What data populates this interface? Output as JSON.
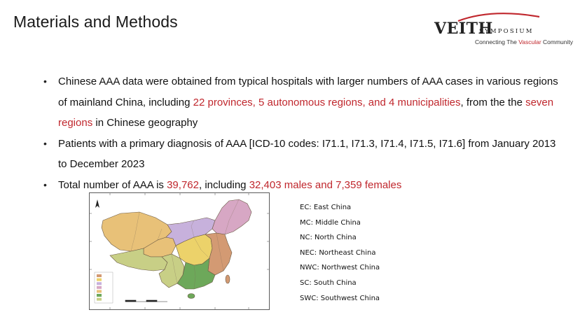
{
  "header": {
    "title": "Materials and Methods",
    "logo": {
      "main": "VEITH",
      "sub": "SYMPOSIUM",
      "tagline_parts": [
        "Connecting The ",
        "Vascular",
        " Community"
      ],
      "accent_color": "#c0272d"
    }
  },
  "bullets": [
    {
      "runs": [
        {
          "text": "Chinese AAA data were obtained from typical hospitals with larger numbers of AAA cases in various regions of mainland China, including ",
          "hl": false
        },
        {
          "text": "22 provinces, 5 autonomous regions, and 4 municipalities",
          "hl": true
        },
        {
          "text": ", from the the ",
          "hl": false
        },
        {
          "text": "seven regions",
          "hl": true
        },
        {
          "text": " in Chinese geography",
          "hl": false
        }
      ]
    },
    {
      "runs": [
        {
          "text": "Patients with a primary diagnosis of AAA [ICD-10 codes: I71.1, I71.3, I71.4, I71.5, I71.6] from January 2013 to December 2023",
          "hl": false
        }
      ]
    },
    {
      "runs": [
        {
          "text": "Total number of AAA is ",
          "hl": false
        },
        {
          "text": "39,762",
          "hl": true
        },
        {
          "text": ", including ",
          "hl": false
        },
        {
          "text": "32,403 males and 7,359 females",
          "hl": true
        }
      ]
    }
  ],
  "legend": [
    "EC: East China",
    "MC: Middle China",
    "NC: North China",
    "NEC: Northeast China",
    "NWC: Northwest China",
    "SC: South China",
    "SWC: Southwest China"
  ],
  "map": {
    "region_colors": {
      "NWC": "#e8c178",
      "NEC": "#d7a7c4",
      "NC": "#c7b1dc",
      "EC": "#d39a73",
      "MC": "#ecd26a",
      "SC": "#6da85a",
      "SWC": "#c8cf86"
    }
  }
}
